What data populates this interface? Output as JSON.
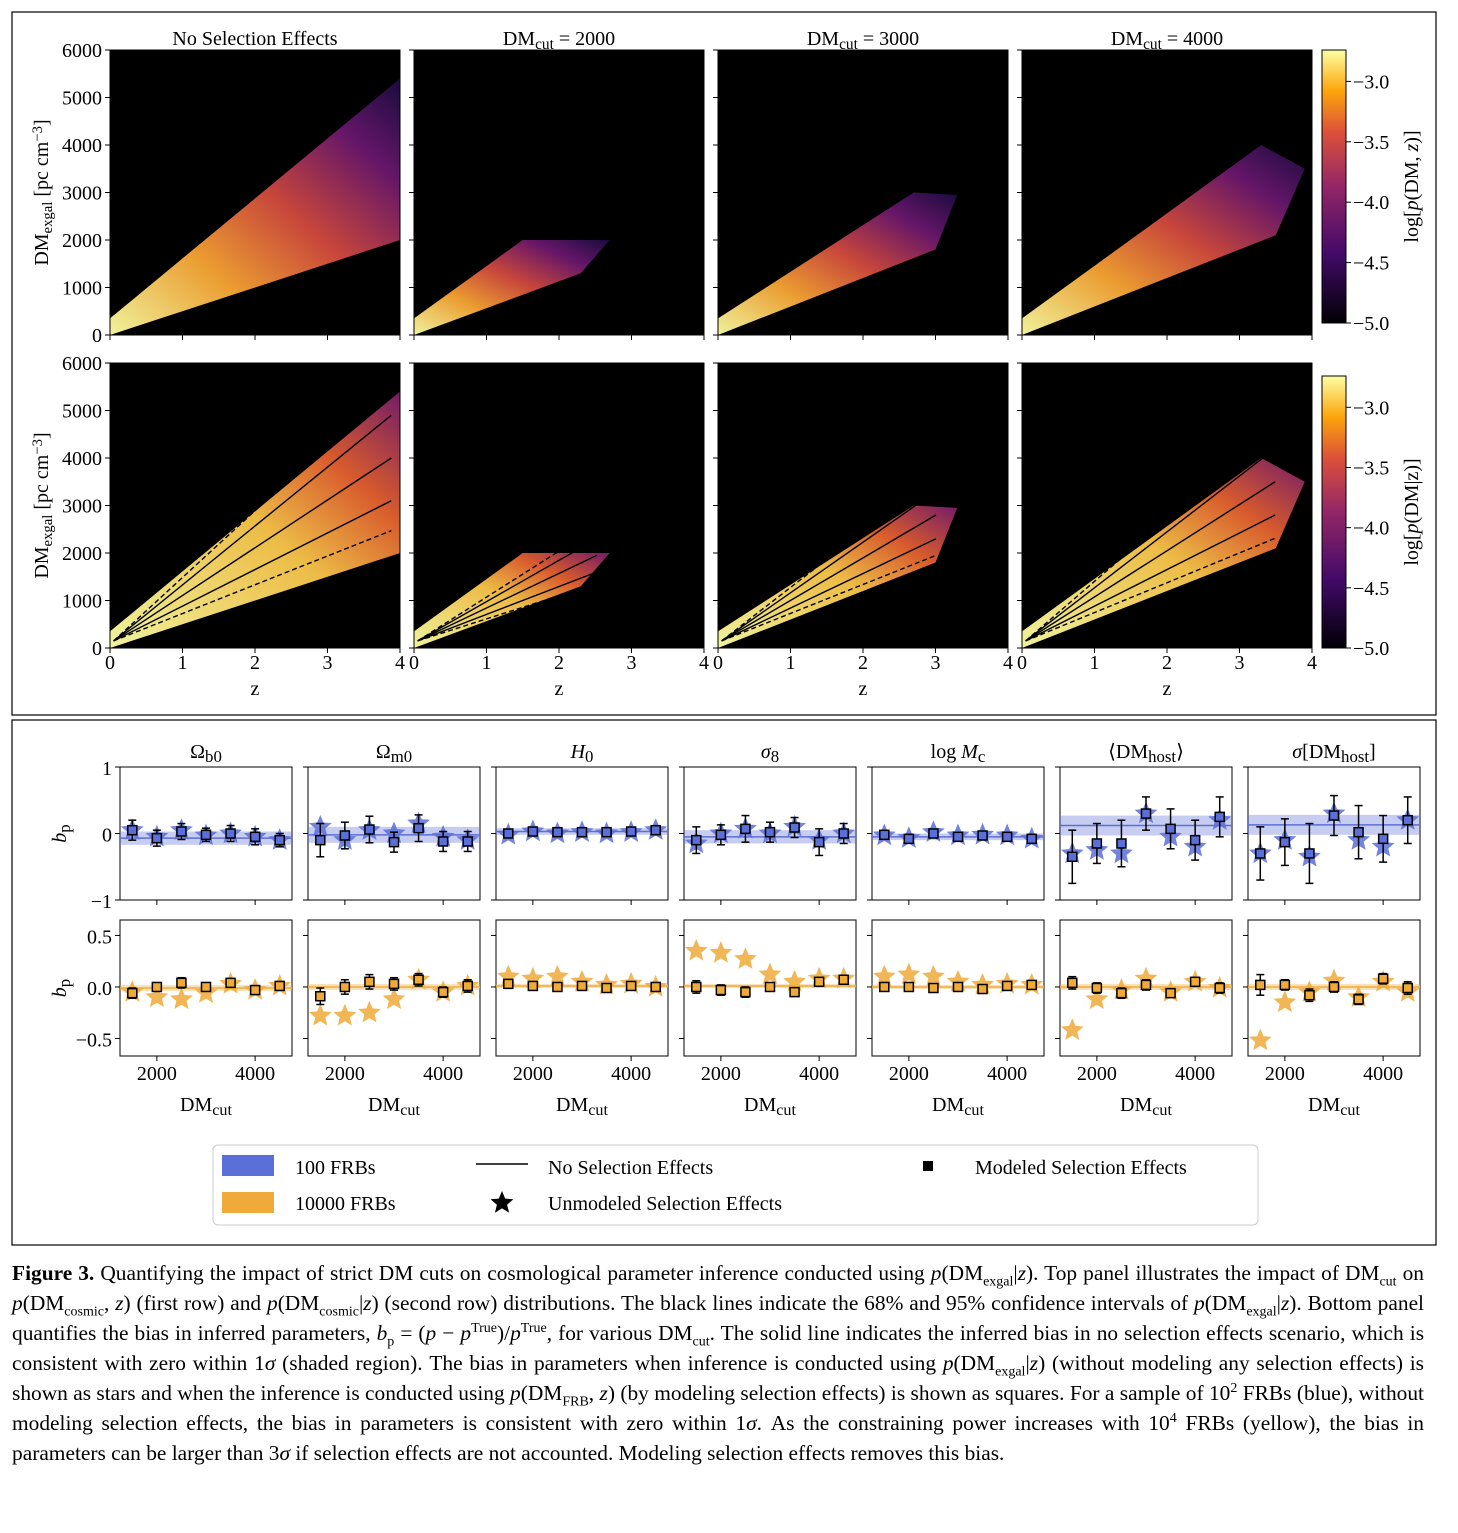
{
  "figure": {
    "top_panel": {
      "titles": [
        [
          {
            "t": "No Selection Effects"
          }
        ],
        [
          {
            "t": "DM"
          },
          {
            "sub": "cut"
          },
          {
            "t": " = 2000"
          }
        ],
        [
          {
            "t": "DM"
          },
          {
            "sub": "cut"
          },
          {
            "t": " = 3000"
          }
        ],
        [
          {
            "t": "DM"
          },
          {
            "sub": "cut"
          },
          {
            "t": " = 4000"
          }
        ]
      ],
      "xlabel": "z",
      "ylabel": [
        {
          "t": "DM"
        },
        {
          "sub": "exgal"
        },
        {
          "t": " [pc cm"
        },
        {
          "sup": "−3"
        },
        {
          "t": "]"
        }
      ],
      "xlim": [
        0,
        4
      ],
      "xticks": [
        0,
        1,
        2,
        3,
        4
      ],
      "ylim": [
        0,
        6000
      ],
      "yticks": [
        0,
        1000,
        2000,
        3000,
        4000,
        5000,
        6000
      ],
      "colorbar": {
        "lim": [
          -5.0,
          -2.74
        ],
        "ticks": [
          {
            "value": -3.0,
            "label": "−3.0"
          },
          {
            "value": -3.5,
            "label": "−3.5"
          },
          {
            "value": -4.0,
            "label": "−4.0"
          },
          {
            "value": -4.5,
            "label": "−4.5"
          },
          {
            "value": -5.0,
            "label": "−5.0"
          }
        ],
        "labels": [
          [
            {
              "t": "log["
            },
            {
              "i": "p"
            },
            {
              "t": "(DM, "
            },
            {
              "i": "z"
            },
            {
              "t": ")]"
            }
          ],
          [
            {
              "t": "log["
            },
            {
              "i": "p"
            },
            {
              "t": "(DM|z)]"
            }
          ]
        ]
      }
    },
    "bottom_panel": {
      "xlim": [
        1250,
        4750
      ],
      "xticks": [
        2000,
        4000
      ],
      "x": [
        1500,
        2000,
        2500,
        3000,
        3500,
        4000,
        4500
      ],
      "xlabel": [
        {
          "t": "DM"
        },
        {
          "sub": "cut"
        }
      ],
      "ylabel": [
        {
          "i": "b"
        },
        {
          "sub": "p"
        }
      ],
      "rows": [
        {
          "color": "#5b6fd8",
          "ylim": [
            -1,
            1
          ],
          "yticks": [
            {
              "value": -1,
              "label": "−1"
            },
            0,
            1
          ]
        },
        {
          "color": "#efaa3a",
          "ylim": [
            -0.67,
            0.65
          ],
          "yticks": [
            {
              "value": -0.5,
              "label": "−0.5"
            },
            {
              "value": 0,
              "label": "0.0"
            },
            0.5
          ]
        }
      ],
      "params": [
        {
          "title": [
            {
              "t": "Ω"
            },
            {
              "sub": "b0"
            }
          ],
          "rows": [
            {
              "line": -0.07,
              "band": 0.1,
              "squares": [
                0.05,
                -0.07,
                0.03,
                -0.02,
                0.0,
                -0.05,
                -0.1
              ],
              "errors": [
                0.15,
                0.12,
                0.12,
                0.1,
                0.12,
                0.12,
                0.1
              ],
              "stars": [
                0.05,
                -0.05,
                0.05,
                -0.03,
                0.0,
                -0.05,
                -0.1
              ]
            },
            {
              "line": -0.01,
              "band": 0.03,
              "squares": [
                -0.06,
                0.0,
                0.04,
                0.0,
                0.04,
                -0.03,
                0.01
              ],
              "errors": [
                0.05,
                0.04,
                0.05,
                0.04,
                0.04,
                0.04,
                0.04
              ],
              "stars": [
                -0.05,
                -0.1,
                -0.12,
                -0.06,
                0.03,
                -0.03,
                0.01
              ]
            }
          ]
        },
        {
          "title": [
            {
              "t": "Ω"
            },
            {
              "sub": "m0"
            }
          ],
          "rows": [
            {
              "line": -0.02,
              "band": 0.12,
              "squares": [
                -0.1,
                -0.03,
                0.06,
                -0.13,
                0.08,
                -0.12,
                -0.12
              ],
              "errors": [
                0.25,
                0.2,
                0.2,
                0.15,
                0.2,
                0.15,
                0.15
              ],
              "stars": [
                0.1,
                -0.1,
                0.05,
                0.0,
                0.15,
                -0.05,
                -0.1
              ]
            },
            {
              "line": 0.0,
              "band": 0.03,
              "squares": [
                -0.09,
                0.0,
                0.05,
                0.03,
                0.07,
                -0.05,
                0.01
              ],
              "errors": [
                0.08,
                0.07,
                0.07,
                0.06,
                0.06,
                0.05,
                0.06
              ],
              "stars": [
                -0.28,
                -0.28,
                -0.25,
                -0.12,
                0.07,
                -0.05,
                0.01
              ]
            }
          ]
        },
        {
          "title": [
            {
              "i": "H"
            },
            {
              "sub": "0"
            }
          ],
          "rows": [
            {
              "line": 0.03,
              "band": 0.05,
              "squares": [
                0.0,
                0.03,
                0.02,
                0.02,
                0.02,
                0.03,
                0.05
              ],
              "errors": [
                0.04,
                0.04,
                0.04,
                0.04,
                0.04,
                0.04,
                0.04
              ],
              "stars": [
                -0.02,
                0.03,
                0.0,
                0.02,
                0.0,
                0.02,
                0.05
              ]
            },
            {
              "line": 0.01,
              "band": 0.02,
              "squares": [
                0.03,
                0.01,
                0.0,
                0.01,
                -0.01,
                0.01,
                0.0
              ],
              "errors": [
                0.02,
                0.02,
                0.02,
                0.02,
                0.02,
                0.02,
                0.02
              ],
              "stars": [
                0.1,
                0.08,
                0.1,
                0.05,
                0.02,
                0.03,
                0.0
              ]
            }
          ]
        },
        {
          "title": [
            {
              "i": "σ"
            },
            {
              "sub": "8"
            }
          ],
          "rows": [
            {
              "line": -0.05,
              "band": 0.1,
              "squares": [
                -0.1,
                -0.02,
                0.07,
                0.02,
                0.09,
                -0.13,
                0.0
              ],
              "errors": [
                0.2,
                0.15,
                0.2,
                0.15,
                0.15,
                0.2,
                0.15
              ],
              "stars": [
                -0.15,
                0.0,
                0.07,
                0.0,
                0.1,
                -0.1,
                0.0
              ]
            },
            {
              "line": 0.01,
              "band": 0.02,
              "squares": [
                0.0,
                -0.03,
                -0.05,
                0.0,
                -0.05,
                0.05,
                0.07
              ],
              "errors": [
                0.06,
                0.05,
                0.05,
                0.04,
                0.04,
                0.04,
                0.04
              ],
              "stars": [
                0.35,
                0.33,
                0.27,
                0.12,
                0.05,
                0.08,
                0.08
              ]
            }
          ]
        },
        {
          "title": [
            {
              "t": "log "
            },
            {
              "i": "M"
            },
            {
              "sub": "c"
            }
          ],
          "rows": [
            {
              "line": -0.05,
              "band": 0.05,
              "squares": [
                -0.02,
                -0.08,
                0.0,
                -0.05,
                -0.03,
                -0.05,
                -0.08
              ],
              "errors": [
                0.05,
                0.04,
                0.05,
                0.04,
                0.04,
                0.04,
                0.04
              ],
              "stars": [
                -0.03,
                -0.07,
                0.02,
                -0.03,
                -0.02,
                -0.03,
                -0.08
              ]
            },
            {
              "line": 0.0,
              "band": 0.02,
              "squares": [
                0.0,
                0.0,
                -0.01,
                0.0,
                -0.02,
                0.01,
                0.02
              ],
              "errors": [
                0.02,
                0.02,
                0.02,
                0.02,
                0.02,
                0.02,
                0.02
              ],
              "stars": [
                0.1,
                0.12,
                0.1,
                0.05,
                0.02,
                0.03,
                0.02
              ]
            }
          ]
        },
        {
          "title": [
            {
              "t": "⟨DM"
            },
            {
              "sub": "host"
            },
            {
              "t": "⟩"
            }
          ],
          "rows": [
            {
              "line": 0.12,
              "band": 0.15,
              "squares": [
                -0.35,
                -0.15,
                -0.15,
                0.3,
                0.07,
                -0.1,
                0.25
              ],
              "errors": [
                0.4,
                0.3,
                0.35,
                0.25,
                0.3,
                0.3,
                0.3
              ],
              "stars": [
                -0.3,
                -0.25,
                -0.3,
                0.3,
                -0.05,
                -0.2,
                0.2
              ]
            },
            {
              "line": 0.0,
              "band": 0.03,
              "squares": [
                0.04,
                -0.01,
                -0.06,
                0.02,
                -0.06,
                0.05,
                -0.01
              ],
              "errors": [
                0.06,
                0.05,
                0.05,
                0.05,
                0.04,
                0.04,
                0.05
              ],
              "stars": [
                -0.42,
                -0.12,
                -0.03,
                0.08,
                -0.05,
                0.05,
                -0.01
              ]
            }
          ]
        },
        {
          "title": [
            {
              "i": "σ"
            },
            {
              "t": "[DM"
            },
            {
              "sub": "host"
            },
            {
              "t": "]"
            }
          ],
          "rows": [
            {
              "line": 0.13,
              "band": 0.15,
              "squares": [
                -0.3,
                -0.13,
                -0.3,
                0.27,
                0.02,
                -0.08,
                0.2
              ],
              "errors": [
                0.4,
                0.35,
                0.45,
                0.3,
                0.4,
                0.35,
                0.35
              ],
              "stars": [
                -0.3,
                -0.1,
                -0.35,
                0.3,
                -0.1,
                -0.2,
                0.2
              ]
            },
            {
              "line": 0.0,
              "band": 0.03,
              "squares": [
                0.02,
                0.02,
                -0.08,
                0.0,
                -0.12,
                0.08,
                -0.01
              ],
              "errors": [
                0.1,
                0.05,
                0.06,
                0.05,
                0.05,
                0.05,
                0.06
              ],
              "stars": [
                -0.52,
                -0.15,
                -0.05,
                0.06,
                -0.1,
                0.05,
                -0.05
              ]
            }
          ]
        }
      ]
    },
    "legend": {
      "items": [
        "100 FRBs",
        "10000 FRBs",
        "No Selection Effects",
        "Unmodeled Selection Effects",
        "Modeled Selection Effects"
      ]
    },
    "caption": {
      "label": "Figure 3.",
      "text": [
        {
          "t": " Quantifying the impact of strict DM cuts on cosmological parameter inference conducted using "
        },
        {
          "i": "p"
        },
        {
          "t": "(DM"
        },
        {
          "sub": "exgal"
        },
        {
          "t": "|"
        },
        {
          "i": "z"
        },
        {
          "t": "). Top panel illustrates the impact of DM"
        },
        {
          "sub": "cut"
        },
        {
          "t": " on "
        },
        {
          "i": "p"
        },
        {
          "t": "(DM"
        },
        {
          "sub": "cosmic"
        },
        {
          "t": ", "
        },
        {
          "i": "z"
        },
        {
          "t": ") (first row) and "
        },
        {
          "i": "p"
        },
        {
          "t": "(DM"
        },
        {
          "sub": "cosmic"
        },
        {
          "t": "|"
        },
        {
          "i": "z"
        },
        {
          "t": ") (second row) distributions. The black lines indicate the 68% and 95% confidence intervals of "
        },
        {
          "i": "p"
        },
        {
          "t": "(DM"
        },
        {
          "sub": "exgal"
        },
        {
          "t": "|"
        },
        {
          "i": "z"
        },
        {
          "t": "). Bottom panel quantifies the bias in inferred parameters, "
        },
        {
          "i": "b"
        },
        {
          "sub": "p"
        },
        {
          "t": " = ("
        },
        {
          "i": "p"
        },
        {
          "t": " − "
        },
        {
          "i": "p"
        },
        {
          "sup": "True"
        },
        {
          "t": ")/"
        },
        {
          "i": "p"
        },
        {
          "sup": "True"
        },
        {
          "t": ", for various DM"
        },
        {
          "sub": "cut"
        },
        {
          "t": ". The solid line indicates the inferred bias in no selection effects scenario, which is consistent with zero within 1"
        },
        {
          "i": "σ"
        },
        {
          "t": " (shaded region). The bias in parameters when inference is conducted using "
        },
        {
          "i": "p"
        },
        {
          "t": "(DM"
        },
        {
          "sub": "exgal"
        },
        {
          "t": "|"
        },
        {
          "i": "z"
        },
        {
          "t": ") (without modeling any selection effects) is shown as stars and when the inference is conducted using "
        },
        {
          "i": "p"
        },
        {
          "t": "(DM"
        },
        {
          "sub": "FRB"
        },
        {
          "t": ", "
        },
        {
          "i": "z"
        },
        {
          "t": ") (by modeling selection effects) is shown as squares. For a sample of 10"
        },
        {
          "sup": "2"
        },
        {
          "t": " FRBs (blue), without modeling selection effects, the bias in parameters is consistent with zero within 1"
        },
        {
          "i": "σ"
        },
        {
          "t": ". As the constraining power increases with 10"
        },
        {
          "sup": "4"
        },
        {
          "t": " FRBs (yellow), the bias in parameters can be larger than 3"
        },
        {
          "i": "σ"
        },
        {
          "t": " if selection effects are not accounted. Modeling selection effects removes this bias."
        }
      ]
    }
  }
}
